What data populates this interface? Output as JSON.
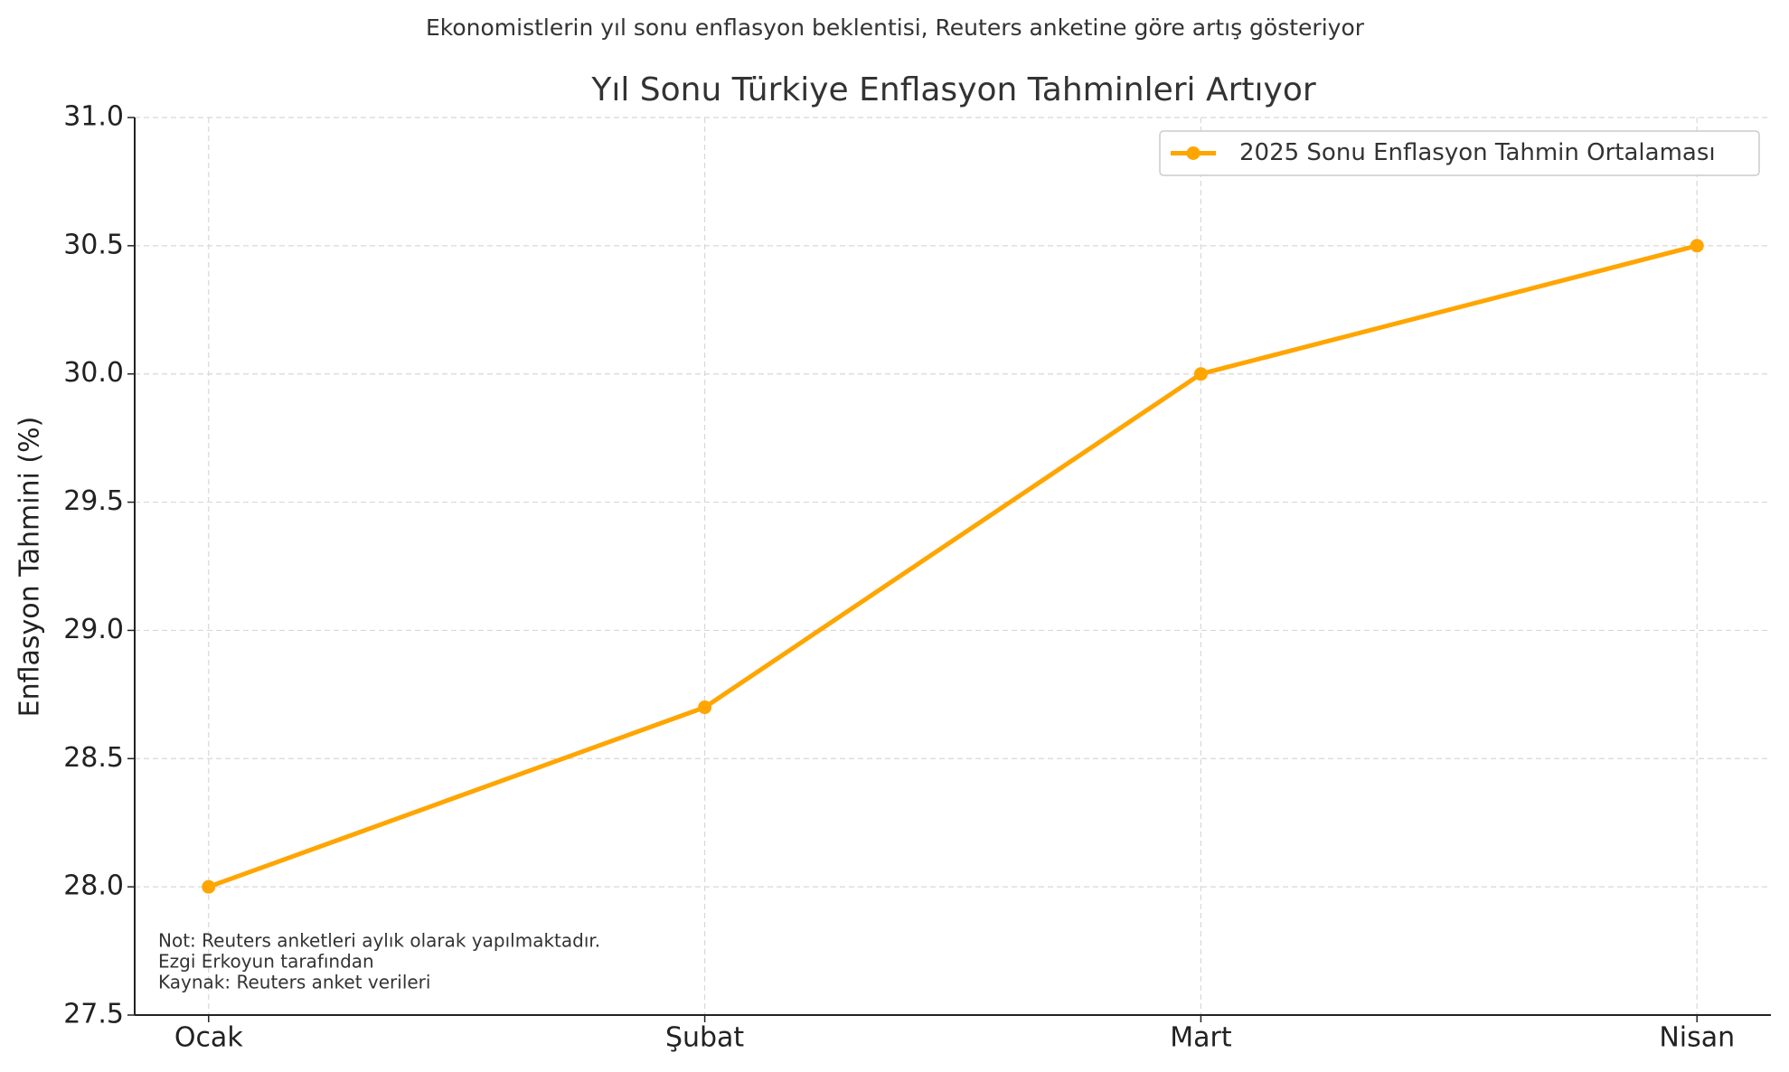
{
  "chart_data": {
    "type": "line",
    "subtitle": "Ekonomistlerin yıl sonu enflasyon beklentisi, Reuters anketine göre artış gösteriyor",
    "title": "Yıl Sonu Türkiye Enflasyon Tahminleri Artıyor",
    "ylabel": "Enflasyon Tahmini (%)",
    "categories": [
      "Ocak",
      "Şubat",
      "Mart",
      "Nisan"
    ],
    "series": [
      {
        "name": "2025 Sonu Enflasyon Tahmin Ortalaması",
        "color": "#ffa500",
        "values": [
          28.0,
          28.7,
          30.0,
          30.5
        ]
      }
    ],
    "ylim": [
      27.5,
      31.0
    ],
    "yticks": [
      {
        "value": 27.5,
        "label": "27.5"
      },
      {
        "value": 28,
        "label": "28.0"
      },
      {
        "value": 28.5,
        "label": "28.5"
      },
      {
        "value": 29,
        "label": "29.0"
      },
      {
        "value": 29.5,
        "label": "29.5"
      },
      {
        "value": 30,
        "label": "30.0"
      },
      {
        "value": 30.5,
        "label": "30.5"
      },
      {
        "value": 31,
        "label": "31.0"
      }
    ],
    "grid": true,
    "legend": "upper right",
    "annotations": [
      "Not: Reuters anketleri aylık olarak yapılmaktadır.",
      "Ezgi Erkoyun tarafından",
      "Kaynak: Reuters anket verileri"
    ]
  }
}
